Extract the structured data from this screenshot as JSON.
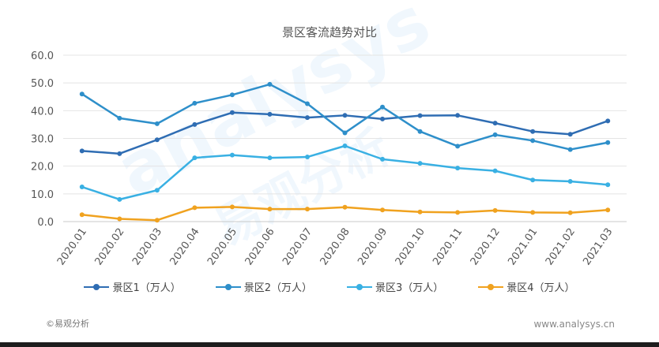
{
  "chart_data": {
    "type": "line",
    "title": "景区客流趋势对比",
    "categories": [
      "2020.01",
      "2020.02",
      "2020.03",
      "2020.04",
      "2020.05",
      "2020.06",
      "2020.07",
      "2020.08",
      "2020.09",
      "2020.10",
      "2020.11",
      "2020.12",
      "2021.01",
      "2021.02",
      "2021.03"
    ],
    "ylim": [
      0,
      60
    ],
    "yticks": [
      "0.0",
      "10.0",
      "20.0",
      "30.0",
      "40.0",
      "50.0",
      "60.0"
    ],
    "grid": true,
    "legend_position": "bottom",
    "series": [
      {
        "name": "景区1（万人）",
        "color": "#2f6db3",
        "values": [
          25.5,
          24.5,
          29.5,
          35,
          39.3,
          38.7,
          37.5,
          38.3,
          37,
          38.2,
          38.3,
          35.5,
          32.5,
          31.5,
          36.3
        ]
      },
      {
        "name": "景区2（万人）",
        "color": "#2e8fca",
        "values": [
          46,
          37.3,
          35.3,
          42.7,
          45.7,
          49.5,
          42.5,
          32,
          41.3,
          32.5,
          27.2,
          31.3,
          29.2,
          26,
          28.5
        ]
      },
      {
        "name": "景区3（万人）",
        "color": "#39b0e3",
        "values": [
          12.5,
          8,
          11.3,
          23,
          24,
          23,
          23.3,
          27.3,
          22.5,
          21,
          19.3,
          18.3,
          15,
          14.5,
          13.3
        ]
      },
      {
        "name": "景区4（万人）",
        "color": "#f0a21f",
        "values": [
          2.5,
          1,
          0.5,
          5,
          5.3,
          4.5,
          4.5,
          5.2,
          4.2,
          3.5,
          3.3,
          4,
          3.3,
          3.2,
          4.2
        ]
      }
    ]
  },
  "watermark": {
    "text": "analysys",
    "text_cn": "易观分析"
  },
  "footer": {
    "left": "©易观分析",
    "right": "www.analysys.cn"
  }
}
